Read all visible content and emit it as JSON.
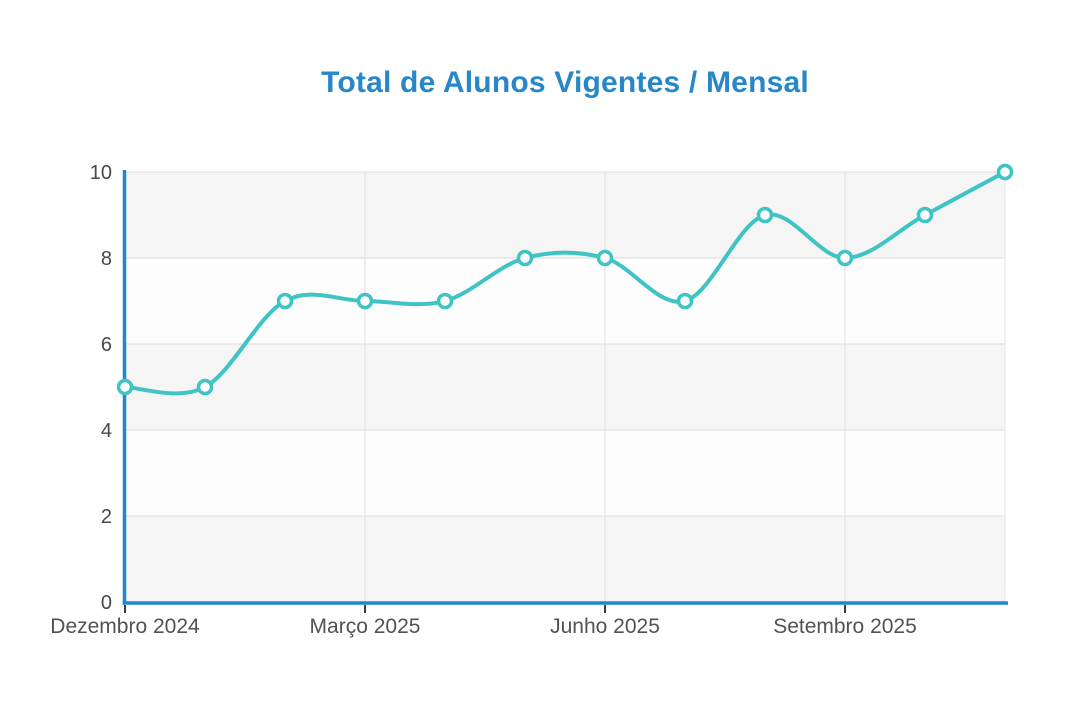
{
  "page": {
    "background_color": "#ffffff"
  },
  "chart_data": {
    "type": "line",
    "title": "Total de Alunos Vigentes / Mensal",
    "line_style": "spline",
    "marker": "circle",
    "values": [
      5,
      5,
      7,
      7,
      7,
      8,
      8,
      7,
      9,
      8,
      9,
      10
    ],
    "x_tick_labels": [
      {
        "index": 0,
        "label": "Dezembro 2024"
      },
      {
        "index": 3,
        "label": "Março 2025"
      },
      {
        "index": 6,
        "label": "Junho 2025"
      },
      {
        "index": 9,
        "label": "Setembro 2025"
      }
    ],
    "y_ticks": [
      0,
      2,
      4,
      6,
      8,
      10
    ],
    "ylim": [
      0,
      10
    ],
    "grid": true,
    "interlaced_bands": true,
    "legend": "none",
    "colors": {
      "title": "#2787c8",
      "axis": "#1e88c9",
      "line": "#40c3c5",
      "marker_fill": "#ffffff",
      "marker_stroke": "#40c3c5",
      "grid": "#e7e7e7",
      "band_gray": "#f5f5f6",
      "band_white": "#fdfdfd",
      "y_label": "#484848",
      "x_label": "#525252",
      "tick_mark": "#3c3c3c"
    }
  }
}
